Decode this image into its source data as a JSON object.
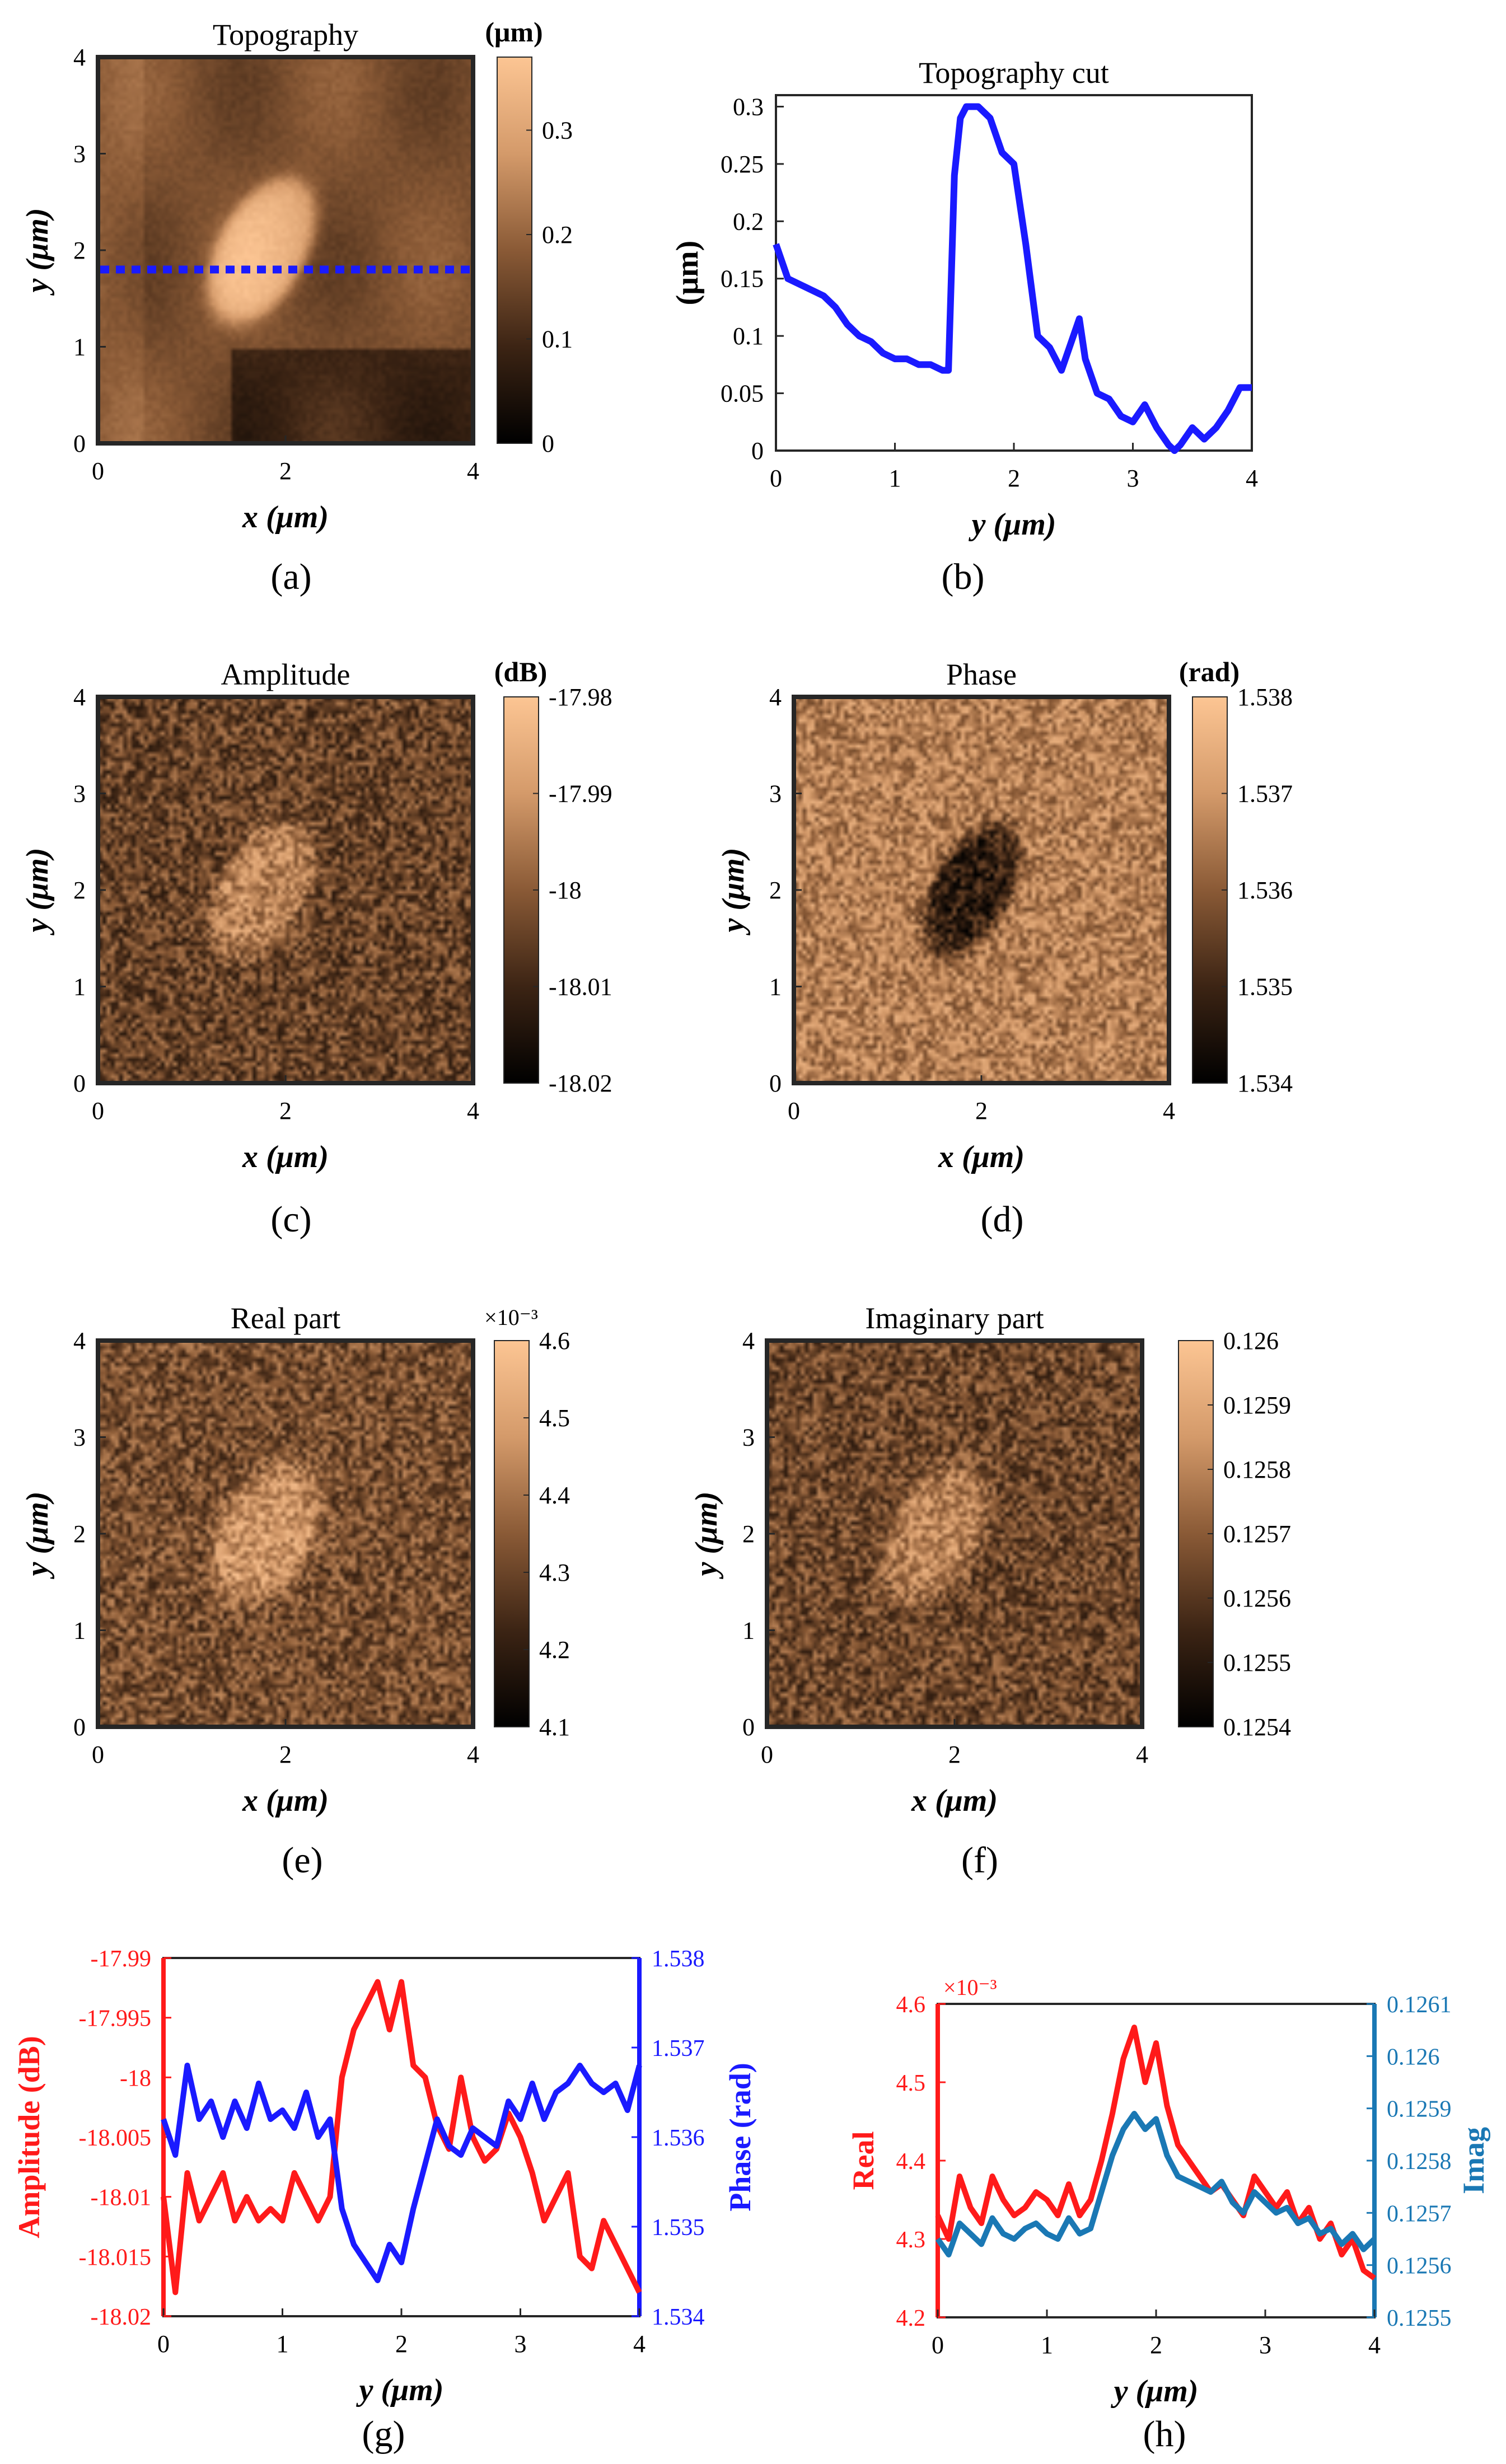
{
  "panels": [
    {
      "id": "a",
      "letter": "(a)",
      "kind": "map",
      "title": "Topography",
      "xlabel": "x (μm)",
      "ylabel": "y (μm)",
      "x_ticks": [
        "0",
        "2",
        "4"
      ],
      "y_ticks": [
        "0",
        "1",
        "2",
        "3",
        "4"
      ],
      "colorbar": {
        "unit": "(μm)",
        "exponent": "",
        "ticks": [
          "0",
          "0.1",
          "0.2",
          "0.3"
        ],
        "min": 0,
        "max": 0.37
      },
      "colormap": [
        "#000000",
        "#3c2414",
        "#8a5a36",
        "#d49a6a",
        "#fcc593"
      ],
      "feature": {
        "cx_um": 1.75,
        "cy_um": 2.0,
        "rx_um": 0.45,
        "ry_um": 0.8,
        "angle_deg": -30,
        "level": 0.9
      },
      "background_level": 0.45,
      "noise": "smooth",
      "cut_line": {
        "y_um": 1.8,
        "color": "#1a1aff"
      }
    },
    {
      "id": "b",
      "letter": "(b)",
      "kind": "line",
      "title": "Topography cut",
      "xlabel": "y (μm)",
      "ylabel": "(μm)",
      "x_ticks": [
        "0",
        "1",
        "2",
        "3",
        "4"
      ],
      "y_ticks": [
        "0",
        "0.05",
        "0.1",
        "0.15",
        "0.2",
        "0.25",
        "0.3"
      ]
    },
    {
      "id": "c",
      "letter": "(c)",
      "kind": "map",
      "title": "Amplitude",
      "xlabel": "x (μm)",
      "ylabel": "y (μm)",
      "x_ticks": [
        "0",
        "2",
        "4"
      ],
      "y_ticks": [
        "0",
        "1",
        "2",
        "3",
        "4"
      ],
      "colorbar": {
        "unit": "(dB)",
        "exponent": "",
        "ticks": [
          "-18.02",
          "-18.01",
          "-18",
          "-17.99",
          "-17.98"
        ],
        "min": -18.02,
        "max": -17.98
      },
      "colormap": [
        "#000000",
        "#3c2414",
        "#8a5a36",
        "#d49a6a",
        "#fcc593"
      ],
      "feature": {
        "cx_um": 1.75,
        "cy_um": 2.0,
        "rx_um": 0.45,
        "ry_um": 0.75,
        "angle_deg": -30,
        "level": 0.68
      },
      "background_level": 0.4,
      "noise": "grain"
    },
    {
      "id": "d",
      "letter": "(d)",
      "kind": "map",
      "title": "Phase",
      "xlabel": "x (μm)",
      "ylabel": "y (μm)",
      "x_ticks": [
        "0",
        "2",
        "4"
      ],
      "y_ticks": [
        "0",
        "1",
        "2",
        "3",
        "4"
      ],
      "colorbar": {
        "unit": "(rad)",
        "exponent": "",
        "ticks": [
          "1.534",
          "1.535",
          "1.536",
          "1.537",
          "1.538"
        ],
        "min": 1.534,
        "max": 1.538
      },
      "colormap": [
        "#000000",
        "#3c2414",
        "#8a5a36",
        "#d49a6a",
        "#fcc593"
      ],
      "feature": {
        "cx_um": 1.9,
        "cy_um": 2.0,
        "rx_um": 0.4,
        "ry_um": 0.75,
        "angle_deg": -30,
        "level": 0.2
      },
      "background_level": 0.65,
      "noise": "grain"
    },
    {
      "id": "e",
      "letter": "(e)",
      "kind": "map",
      "title": "Real part",
      "xlabel": "x (μm)",
      "ylabel": "y (μm)",
      "x_ticks": [
        "0",
        "2",
        "4"
      ],
      "y_ticks": [
        "0",
        "1",
        "2",
        "3",
        "4"
      ],
      "colorbar": {
        "unit": "",
        "exponent": "×10⁻³",
        "ticks": [
          "4.1",
          "4.2",
          "4.3",
          "4.4",
          "4.5",
          "4.6"
        ],
        "min": 4.1,
        "max": 4.6
      },
      "colormap": [
        "#000000",
        "#3c2414",
        "#8a5a36",
        "#d49a6a",
        "#fcc593"
      ],
      "feature": {
        "cx_um": 1.8,
        "cy_um": 2.0,
        "rx_um": 0.5,
        "ry_um": 0.75,
        "angle_deg": -30,
        "level": 0.75
      },
      "background_level": 0.45,
      "noise": "grain"
    },
    {
      "id": "f",
      "letter": "(f)",
      "kind": "map",
      "title": "Imaginary part",
      "xlabel": "x (μm)",
      "ylabel": "y (μm)",
      "x_ticks": [
        "0",
        "2",
        "4"
      ],
      "y_ticks": [
        "0",
        "1",
        "2",
        "3",
        "4"
      ],
      "colorbar": {
        "unit": "",
        "exponent": "",
        "ticks": [
          "0.1254",
          "0.1255",
          "0.1256",
          "0.1257",
          "0.1258",
          "0.1259",
          "0.126"
        ],
        "min": 0.1254,
        "max": 0.126
      },
      "colormap": [
        "#000000",
        "#3c2414",
        "#8a5a36",
        "#d49a6a",
        "#fcc593"
      ],
      "feature": {
        "cx_um": 1.8,
        "cy_um": 2.0,
        "rx_um": 0.45,
        "ry_um": 0.75,
        "angle_deg": -30,
        "level": 0.68
      },
      "background_level": 0.42,
      "noise": "grain"
    },
    {
      "id": "g",
      "letter": "(g)",
      "kind": "dual",
      "xlabel": "y (μm)",
      "x_ticks": [
        "0",
        "1",
        "2",
        "3",
        "4"
      ],
      "left": {
        "label": "Amplitude (dB)",
        "color": "#ff1a1a",
        "exponent": "",
        "ticks": [
          "-18.02",
          "-18.015",
          "-18.01",
          "-18.005",
          "-18",
          "-17.995",
          "-17.99"
        ]
      },
      "right": {
        "label": "Phase (rad)",
        "color": "#1a1aff",
        "exponent": "",
        "ticks": [
          "1.534",
          "1.535",
          "1.536",
          "1.537",
          "1.538"
        ]
      }
    },
    {
      "id": "h",
      "letter": "(h)",
      "kind": "dual",
      "xlabel": "y (μm)",
      "x_ticks": [
        "0",
        "1",
        "2",
        "3",
        "4"
      ],
      "left": {
        "label": "Real",
        "color": "#ff1a1a",
        "exponent": "×10⁻³",
        "ticks": [
          "4.2",
          "4.3",
          "4.4",
          "4.5",
          "4.6"
        ]
      },
      "right": {
        "label": "Imag",
        "color": "#1a78b4",
        "exponent": "",
        "ticks": [
          "0.1255",
          "0.1256",
          "0.1257",
          "0.1258",
          "0.1259",
          "0.126",
          "0.1261"
        ]
      }
    }
  ],
  "chart_data": [
    {
      "panel": "b",
      "type": "line",
      "title": "Topography cut",
      "xlabel": "y (μm)",
      "ylabel": "(μm)",
      "xlim": [
        0,
        4
      ],
      "ylim": [
        0,
        0.31
      ],
      "grid": false,
      "series": [
        {
          "color": "#1a1aff",
          "x": [
            0,
            0.1,
            0.2,
            0.3,
            0.4,
            0.5,
            0.6,
            0.7,
            0.8,
            0.9,
            1.0,
            1.1,
            1.2,
            1.3,
            1.4,
            1.45,
            1.5,
            1.55,
            1.6,
            1.7,
            1.8,
            1.9,
            2.0,
            2.1,
            2.2,
            2.3,
            2.4,
            2.5,
            2.55,
            2.6,
            2.7,
            2.8,
            2.9,
            3.0,
            3.1,
            3.2,
            3.3,
            3.35,
            3.4,
            3.5,
            3.6,
            3.7,
            3.8,
            3.9,
            4.0
          ],
          "y": [
            0.18,
            0.15,
            0.145,
            0.14,
            0.135,
            0.125,
            0.11,
            0.1,
            0.095,
            0.085,
            0.08,
            0.08,
            0.075,
            0.075,
            0.07,
            0.07,
            0.24,
            0.29,
            0.3,
            0.3,
            0.29,
            0.26,
            0.25,
            0.18,
            0.1,
            0.09,
            0.07,
            0.1,
            0.115,
            0.08,
            0.05,
            0.045,
            0.03,
            0.025,
            0.04,
            0.02,
            0.005,
            0.0,
            0.005,
            0.02,
            0.01,
            0.02,
            0.035,
            0.055,
            0.055
          ]
        }
      ]
    },
    {
      "panel": "g",
      "type": "line",
      "xlabel": "y (μm)",
      "xlim": [
        0,
        4
      ],
      "series": [
        {
          "name": "Amplitude (dB)",
          "axis": "left",
          "color": "#ff1a1a",
          "ylim": [
            -18.02,
            -17.99
          ],
          "x": [
            0,
            0.1,
            0.2,
            0.3,
            0.4,
            0.5,
            0.6,
            0.7,
            0.8,
            0.9,
            1.0,
            1.1,
            1.2,
            1.3,
            1.4,
            1.5,
            1.6,
            1.7,
            1.8,
            1.9,
            2.0,
            2.1,
            2.2,
            2.3,
            2.4,
            2.5,
            2.6,
            2.7,
            2.8,
            2.9,
            3.0,
            3.1,
            3.2,
            3.3,
            3.4,
            3.5,
            3.6,
            3.7,
            3.8,
            3.9,
            4.0
          ],
          "y": [
            -18.01,
            -18.018,
            -18.008,
            -18.012,
            -18.01,
            -18.008,
            -18.012,
            -18.01,
            -18.012,
            -18.011,
            -18.012,
            -18.008,
            -18.01,
            -18.012,
            -18.01,
            -18.0,
            -17.996,
            -17.994,
            -17.992,
            -17.996,
            -17.992,
            -17.999,
            -18.0,
            -18.004,
            -18.006,
            -18.0,
            -18.005,
            -18.007,
            -18.006,
            -18.003,
            -18.005,
            -18.008,
            -18.012,
            -18.01,
            -18.008,
            -18.015,
            -18.016,
            -18.012,
            -18.014,
            -18.016,
            -18.018
          ]
        },
        {
          "name": "Phase (rad)",
          "axis": "right",
          "color": "#1a1aff",
          "ylim": [
            1.534,
            1.538
          ],
          "x": [
            0,
            0.1,
            0.2,
            0.3,
            0.4,
            0.5,
            0.6,
            0.7,
            0.8,
            0.9,
            1.0,
            1.1,
            1.2,
            1.3,
            1.4,
            1.5,
            1.6,
            1.7,
            1.8,
            1.9,
            2.0,
            2.1,
            2.2,
            2.3,
            2.4,
            2.5,
            2.6,
            2.7,
            2.8,
            2.9,
            3.0,
            3.1,
            3.2,
            3.3,
            3.4,
            3.5,
            3.6,
            3.7,
            3.8,
            3.9,
            4.0
          ],
          "y": [
            1.5362,
            1.5358,
            1.5368,
            1.5362,
            1.5364,
            1.536,
            1.5364,
            1.5361,
            1.5366,
            1.5362,
            1.5363,
            1.5361,
            1.5365,
            1.536,
            1.5362,
            1.5352,
            1.5348,
            1.5346,
            1.5344,
            1.5348,
            1.5346,
            1.5352,
            1.5357,
            1.5362,
            1.5359,
            1.5358,
            1.5361,
            1.536,
            1.5359,
            1.5364,
            1.5362,
            1.5366,
            1.5362,
            1.5365,
            1.5366,
            1.5368,
            1.5366,
            1.5365,
            1.5366,
            1.5363,
            1.5368
          ]
        }
      ]
    },
    {
      "panel": "h",
      "type": "line",
      "xlabel": "y (μm)",
      "xlim": [
        0,
        4
      ],
      "series": [
        {
          "name": "Real",
          "axis": "left",
          "color": "#ff1a1a",
          "ylim": [
            4.2,
            4.6
          ],
          "x": [
            0,
            0.1,
            0.2,
            0.3,
            0.4,
            0.5,
            0.6,
            0.7,
            0.8,
            0.9,
            1.0,
            1.1,
            1.2,
            1.3,
            1.4,
            1.5,
            1.6,
            1.7,
            1.8,
            1.9,
            2.0,
            2.1,
            2.2,
            2.3,
            2.4,
            2.5,
            2.6,
            2.7,
            2.8,
            2.9,
            3.0,
            3.1,
            3.2,
            3.3,
            3.4,
            3.5,
            3.6,
            3.7,
            3.8,
            3.9,
            4.0
          ],
          "y": [
            4.33,
            4.3,
            4.38,
            4.34,
            4.32,
            4.38,
            4.35,
            4.33,
            4.34,
            4.36,
            4.35,
            4.33,
            4.37,
            4.33,
            4.35,
            4.4,
            4.46,
            4.53,
            4.57,
            4.5,
            4.55,
            4.47,
            4.42,
            4.4,
            4.38,
            4.36,
            4.37,
            4.35,
            4.33,
            4.38,
            4.36,
            4.34,
            4.36,
            4.32,
            4.34,
            4.3,
            4.32,
            4.28,
            4.3,
            4.26,
            4.25
          ]
        },
        {
          "name": "Imag",
          "axis": "right",
          "color": "#1a78b4",
          "ylim": [
            0.1255,
            0.1261
          ],
          "x": [
            0,
            0.1,
            0.2,
            0.3,
            0.4,
            0.5,
            0.6,
            0.7,
            0.8,
            0.9,
            1.0,
            1.1,
            1.2,
            1.3,
            1.4,
            1.5,
            1.6,
            1.7,
            1.8,
            1.9,
            2.0,
            2.1,
            2.2,
            2.3,
            2.4,
            2.5,
            2.6,
            2.7,
            2.8,
            2.9,
            3.0,
            3.1,
            3.2,
            3.3,
            3.4,
            3.5,
            3.6,
            3.7,
            3.8,
            3.9,
            4.0
          ],
          "y": [
            0.12565,
            0.12562,
            0.12568,
            0.12566,
            0.12564,
            0.12569,
            0.12566,
            0.12565,
            0.12567,
            0.12568,
            0.12566,
            0.12565,
            0.12569,
            0.12566,
            0.12567,
            0.12574,
            0.12581,
            0.12586,
            0.12589,
            0.12586,
            0.12588,
            0.12581,
            0.12577,
            0.12576,
            0.12575,
            0.12574,
            0.12576,
            0.12572,
            0.1257,
            0.12574,
            0.12572,
            0.1257,
            0.12571,
            0.12568,
            0.12569,
            0.12566,
            0.12567,
            0.12564,
            0.12566,
            0.12563,
            0.12565
          ]
        }
      ]
    }
  ]
}
